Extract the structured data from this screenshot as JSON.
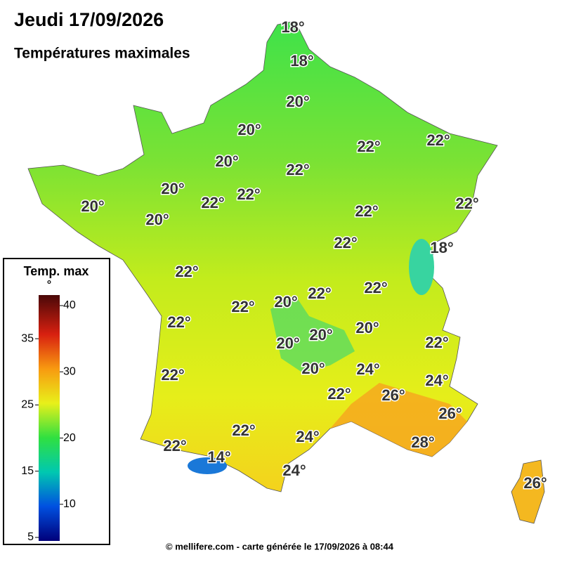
{
  "header": {
    "title": "Jeudi 17/09/2026",
    "subtitle": "Températures maximales"
  },
  "map": {
    "labels": [
      "18°",
      "18°",
      "20°",
      "20°",
      "22°",
      "22°",
      "20°",
      "22°",
      "20°",
      "22°",
      "22°",
      "22°",
      "20°",
      "20°",
      "22°",
      "22°",
      "18°",
      "22°",
      "22°",
      "22°",
      "20°",
      "22°",
      "22°",
      "20°",
      "20°",
      "20°",
      "22°",
      "20°",
      "24°",
      "22°",
      "24°",
      "26°",
      "22°",
      "26°",
      "22°",
      "24°",
      "28°",
      "22°",
      "14°",
      "24°",
      "26°"
    ]
  },
  "legend": {
    "title": "Temp. max",
    "unit": "°",
    "ticks": [
      5,
      10,
      15,
      20,
      25,
      30,
      35,
      40
    ]
  },
  "footer": "© mellifere.com - carte générée le 17/09/2026 à 08:44"
}
